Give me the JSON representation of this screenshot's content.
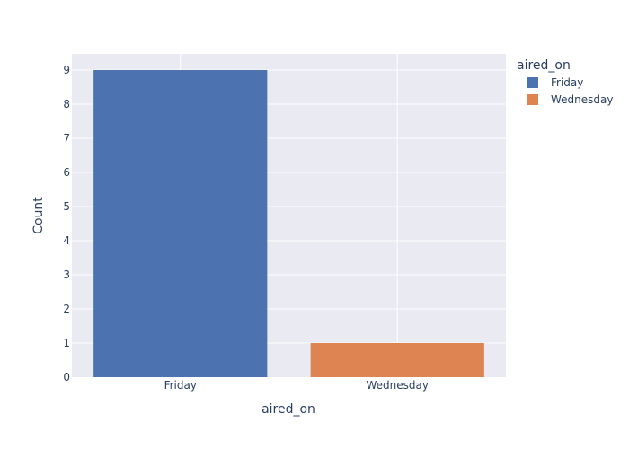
{
  "chart_data": {
    "type": "bar",
    "categories": [
      "Friday",
      "Wednesday"
    ],
    "values": [
      9,
      1
    ],
    "colors": [
      "#4c72b0",
      "#dd8452"
    ],
    "xlabel": "aired_on",
    "ylabel": "Count",
    "ylim": [
      0,
      9
    ],
    "yticks": [
      0,
      1,
      2,
      3,
      4,
      5,
      6,
      7,
      8,
      9
    ],
    "grid": true,
    "legend": {
      "title": "aired_on",
      "position": "top-right",
      "entries": [
        "Friday",
        "Wednesday"
      ]
    }
  }
}
